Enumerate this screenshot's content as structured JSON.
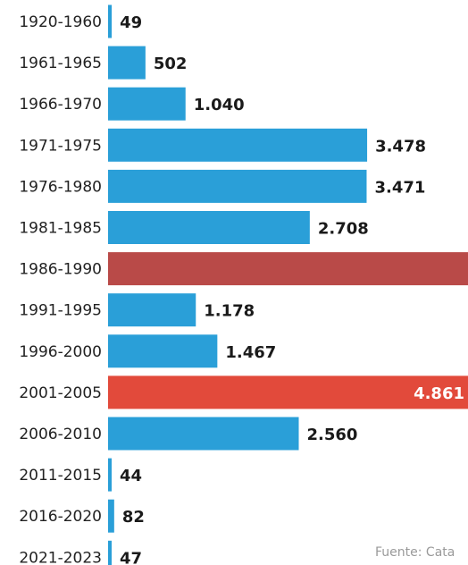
{
  "chart_data": {
    "type": "bar",
    "orientation": "horizontal",
    "categories": [
      "1920-1960",
      "1961-1965",
      "1966-1970",
      "1971-1975",
      "1976-1980",
      "1981-1985",
      "1986-1990",
      "1991-1995",
      "1996-2000",
      "2001-2005",
      "2006-2010",
      "2011-2015",
      "2016-2020",
      "2021-2023"
    ],
    "values": [
      49,
      502,
      1040,
      3478,
      3471,
      2708,
      5200,
      1178,
      1467,
      4861,
      2560,
      44,
      82,
      47
    ],
    "value_labels": [
      "49",
      "502",
      "1.040",
      "3.478",
      "3.471",
      "2.708",
      "",
      "1.178",
      "1.467",
      "4.861",
      "2.560",
      "44",
      "82",
      "47"
    ],
    "bar_colors": [
      "#2a9fd8",
      "#2a9fd8",
      "#2a9fd8",
      "#2a9fd8",
      "#2a9fd8",
      "#2a9fd8",
      "#b94a48",
      "#2a9fd8",
      "#2a9fd8",
      "#e24a3b",
      "#2a9fd8",
      "#2a9fd8",
      "#2a9fd8",
      "#2a9fd8"
    ],
    "title": "",
    "xlabel": "",
    "ylabel": "",
    "grid": false,
    "legend": "none"
  },
  "source": "Fuente: Cata"
}
